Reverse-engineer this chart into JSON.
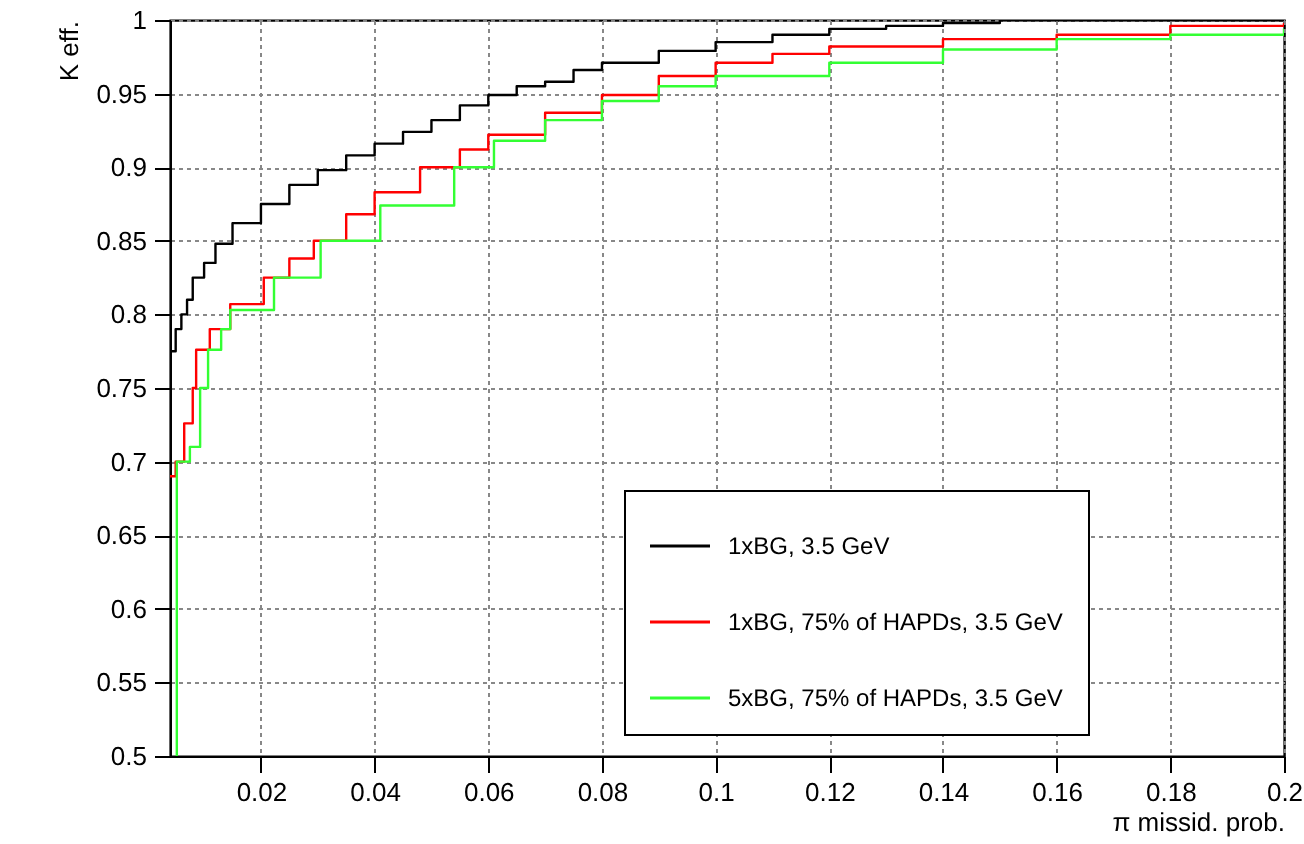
{
  "chart_data": {
    "type": "step",
    "xlabel": "π missid. prob.",
    "ylabel": "K eff.",
    "xlim": [
      0.004,
      0.2
    ],
    "xticks": [
      0.02,
      0.04,
      0.06,
      0.08,
      0.1,
      0.12,
      0.14,
      0.16,
      0.18,
      0.2
    ],
    "ylim": [
      0.5,
      1
    ],
    "yticks": [
      0.5,
      0.55,
      0.6,
      0.65,
      0.7,
      0.75,
      0.8,
      0.85,
      0.9,
      0.95,
      1
    ],
    "grid": true,
    "legend": "bottom right",
    "series": [
      {
        "name": "1xBG, 3.5 GeV",
        "color": "#000000",
        "x": [
          0.004,
          0.005,
          0.006,
          0.007,
          0.008,
          0.01,
          0.012,
          0.015,
          0.02,
          0.025,
          0.03,
          0.035,
          0.04,
          0.045,
          0.05,
          0.055,
          0.06,
          0.065,
          0.07,
          0.075,
          0.08,
          0.09,
          0.1,
          0.11,
          0.12,
          0.13,
          0.14,
          0.15,
          0.2
        ],
        "values": [
          0.775,
          0.79,
          0.8,
          0.81,
          0.825,
          0.835,
          0.848,
          0.862,
          0.875,
          0.888,
          0.898,
          0.908,
          0.916,
          0.924,
          0.932,
          0.942,
          0.949,
          0.955,
          0.958,
          0.966,
          0.971,
          0.979,
          0.985,
          0.99,
          0.994,
          0.996,
          0.998,
          1.0,
          1.0
        ]
      },
      {
        "name": "1xBG, 75% of HAPDs, 3.5 GeV",
        "color": "#ff0000",
        "x": [
          0.004,
          0.005,
          0.0065,
          0.008,
          0.0086,
          0.011,
          0.0146,
          0.0205,
          0.025,
          0.0293,
          0.035,
          0.04,
          0.048,
          0.055,
          0.06,
          0.07,
          0.08,
          0.09,
          0.1,
          0.11,
          0.12,
          0.14,
          0.16,
          0.18,
          0.2
        ],
        "values": [
          0.69,
          0.7,
          0.726,
          0.75,
          0.776,
          0.79,
          0.807,
          0.825,
          0.838,
          0.85,
          0.868,
          0.883,
          0.9,
          0.912,
          0.922,
          0.937,
          0.949,
          0.962,
          0.971,
          0.977,
          0.982,
          0.987,
          0.99,
          0.996,
          0.998
        ]
      },
      {
        "name": "5xBG, 75% of HAPDs, 3.5 GeV",
        "color": "#33ff33",
        "x": [
          0.005,
          0.0052,
          0.0075,
          0.0093,
          0.0107,
          0.013,
          0.0146,
          0.0223,
          0.0305,
          0.041,
          0.054,
          0.061,
          0.07,
          0.08,
          0.09,
          0.1,
          0.12,
          0.14,
          0.16,
          0.18,
          0.2
        ],
        "values": [
          0.5,
          0.7,
          0.71,
          0.75,
          0.776,
          0.79,
          0.803,
          0.825,
          0.85,
          0.874,
          0.9,
          0.918,
          0.932,
          0.945,
          0.955,
          0.962,
          0.971,
          0.98,
          0.987,
          0.99,
          0.994
        ]
      }
    ]
  }
}
